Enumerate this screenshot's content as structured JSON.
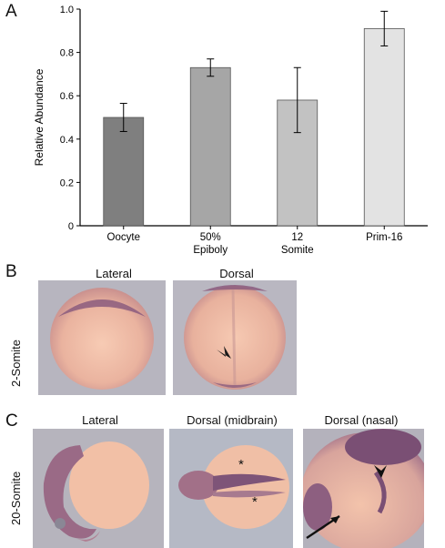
{
  "panels": {
    "a": {
      "letter": "A"
    },
    "b": {
      "letter": "B",
      "row_label": "2-Somite",
      "views": [
        "Lateral",
        "Dorsal"
      ]
    },
    "c": {
      "letter": "C",
      "row_label": "20-Somite",
      "views": [
        "Lateral",
        "Dorsal (midbrain)",
        "Dorsal (nasal)"
      ]
    }
  },
  "chart_data": {
    "type": "bar",
    "categories": [
      [
        "Oocyte"
      ],
      [
        "50%",
        "Epiboly"
      ],
      [
        "12",
        "Somite"
      ],
      [
        "Prim-16"
      ]
    ],
    "values": [
      0.5,
      0.73,
      0.58,
      0.91
    ],
    "errors": [
      0.065,
      0.04,
      0.15,
      0.08
    ],
    "bar_colors": [
      "#7f7f7f",
      "#a6a6a6",
      "#c2c2c2",
      "#e3e3e3"
    ],
    "ylabel": "Relative Abundance",
    "ylim": [
      0,
      1.0
    ],
    "yticks": [
      "0",
      "0.2",
      "0.4",
      "0.6",
      "0.8",
      "1.0"
    ],
    "grid": false
  },
  "annotations": {
    "asterisk": "*"
  }
}
